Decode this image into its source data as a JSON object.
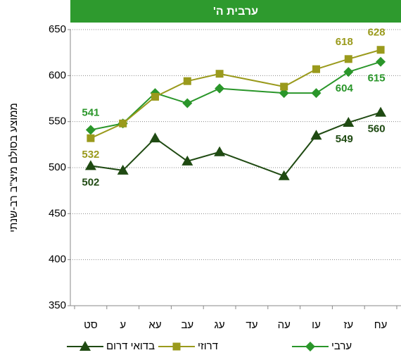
{
  "chart_data": {
    "type": "line",
    "title": "ערבית ה'",
    "y_label": "ממוצע בסולם מיצ\"ב רב-שנתי",
    "categories": [
      "סט",
      "ע",
      "עא",
      "עב",
      "עג",
      "עד",
      "עה",
      "עו",
      "עז",
      "עח"
    ],
    "series": [
      {
        "name": "ערבי",
        "color": "#2a962a",
        "marker": "diamond",
        "values": [
          541,
          548,
          581,
          570,
          586,
          null,
          581,
          581,
          604,
          615
        ]
      },
      {
        "name": "דרוזי",
        "color": "#9a9a1c",
        "marker": "square",
        "values": [
          532,
          548,
          577,
          594,
          602,
          null,
          588,
          607,
          618,
          628
        ]
      },
      {
        "name": "בדואי דרום",
        "color": "#1f4a12",
        "marker": "triangle",
        "values": [
          502,
          497,
          532,
          507,
          517,
          null,
          491,
          535,
          549,
          560
        ]
      }
    ],
    "ylim": [
      350,
      650
    ],
    "yticks": [
      350,
      400,
      450,
      500,
      550,
      600,
      650
    ],
    "grid": true,
    "title_color": "#2e9a2e"
  }
}
